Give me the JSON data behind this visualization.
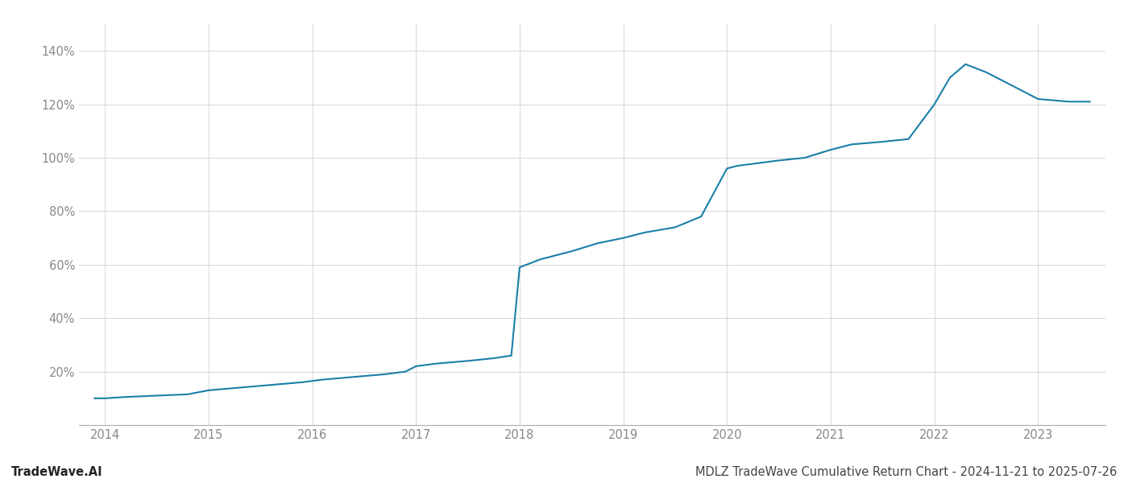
{
  "title": "MDLZ TradeWave Cumulative Return Chart - 2024-11-21 to 2025-07-26",
  "watermark": "TradeWave.AI",
  "line_color": "#1a7fa8",
  "background_color": "#ffffff",
  "grid_color": "#d0d0d0",
  "axis_color": "#aaaaaa",
  "x_values": [
    2013.9,
    2014.0,
    2014.2,
    2014.5,
    2014.8,
    2015.0,
    2015.3,
    2015.6,
    2015.9,
    2016.1,
    2016.4,
    2016.7,
    2016.9,
    2017.0,
    2017.2,
    2017.5,
    2017.75,
    2017.92,
    2018.0,
    2018.2,
    2018.5,
    2018.75,
    2019.0,
    2019.2,
    2019.5,
    2019.75,
    2020.0,
    2020.1,
    2020.3,
    2020.5,
    2020.75,
    2021.0,
    2021.2,
    2021.5,
    2021.75,
    2022.0,
    2022.15,
    2022.3,
    2022.5,
    2022.7,
    2023.0,
    2023.3,
    2023.5
  ],
  "y_values": [
    10,
    10,
    10.5,
    11,
    11.5,
    13,
    14,
    15,
    16,
    17,
    18,
    19,
    20,
    22,
    23,
    24,
    25,
    26,
    59,
    62,
    65,
    68,
    70,
    72,
    74,
    78,
    96,
    97,
    98,
    99,
    100,
    103,
    105,
    106,
    107,
    120,
    130,
    135,
    132,
    128,
    122,
    121,
    121
  ],
  "x_ticks": [
    2014,
    2015,
    2016,
    2017,
    2018,
    2019,
    2020,
    2021,
    2022,
    2023
  ],
  "y_ticks": [
    20,
    40,
    60,
    80,
    100,
    120,
    140
  ],
  "ylim": [
    0,
    150
  ],
  "xlim": [
    2013.75,
    2023.65
  ],
  "line_width": 1.5,
  "title_fontsize": 10.5,
  "watermark_fontsize": 10.5,
  "tick_fontsize": 10.5,
  "tick_color": "#888888",
  "title_color": "#444444",
  "watermark_color": "#222222"
}
